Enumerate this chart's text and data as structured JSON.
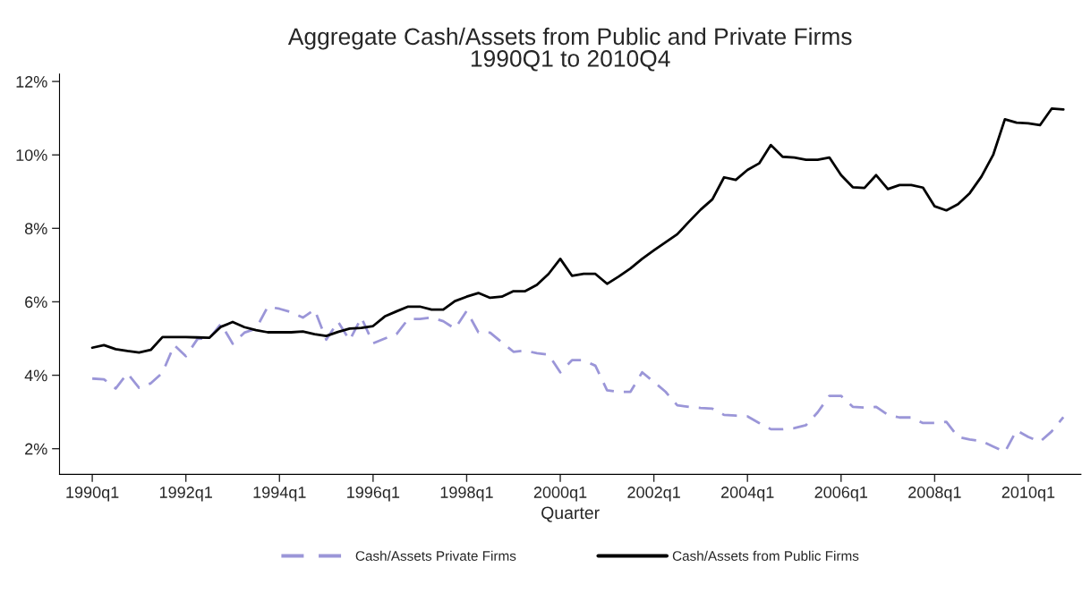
{
  "chart_data": {
    "type": "line",
    "title": "Aggregate Cash/Assets from Public and Private Firms\n1990Q1 to 2010Q4",
    "xlabel": "Quarter",
    "categories": [
      "1990q1",
      null,
      null,
      null,
      null,
      null,
      null,
      null,
      "1992q1",
      null,
      null,
      null,
      null,
      null,
      null,
      null,
      "1994q1",
      null,
      null,
      null,
      null,
      null,
      null,
      null,
      "1996q1",
      null,
      null,
      null,
      null,
      null,
      null,
      null,
      "1998q1",
      null,
      null,
      null,
      null,
      null,
      null,
      null,
      "2000q1",
      null,
      null,
      null,
      null,
      null,
      null,
      null,
      "2002q1",
      null,
      null,
      null,
      null,
      null,
      null,
      null,
      "2004q1",
      null,
      null,
      null,
      null,
      null,
      null,
      null,
      "2006q1",
      null,
      null,
      null,
      null,
      null,
      null,
      null,
      "2008q1",
      null,
      null,
      null,
      null,
      null,
      null,
      null,
      "2010q1",
      null,
      null,
      null
    ],
    "series": [
      {
        "name": "Cash/Assets Private Firms",
        "color": "#9b96d8",
        "line_style": "dashed",
        "values": [
          3.91,
          3.89,
          3.64,
          4.05,
          3.66,
          3.78,
          4.07,
          4.82,
          4.52,
          4.99,
          5.0,
          5.4,
          4.86,
          5.16,
          5.27,
          5.87,
          5.81,
          5.72,
          5.57,
          5.79,
          4.97,
          5.46,
          4.95,
          5.57,
          4.87,
          5.0,
          5.12,
          5.53,
          5.53,
          5.57,
          5.47,
          5.27,
          5.75,
          5.17,
          5.16,
          4.9,
          4.64,
          4.67,
          4.6,
          4.56,
          4.08,
          4.41,
          4.41,
          4.26,
          3.59,
          3.55,
          3.55,
          4.08,
          3.82,
          3.55,
          3.18,
          3.14,
          3.11,
          3.09,
          2.92,
          2.9,
          2.88,
          2.7,
          2.53,
          2.53,
          2.56,
          2.64,
          2.99,
          3.44,
          3.44,
          3.14,
          3.12,
          3.14,
          2.92,
          2.85,
          2.85,
          2.7,
          2.7,
          2.73,
          2.32,
          2.25,
          2.21,
          2.06,
          1.91,
          2.5,
          2.32,
          2.19,
          2.47,
          2.86
        ]
      },
      {
        "name": "Cash/Assets from Public Firms",
        "color": "#000000",
        "line_style": "solid",
        "values": [
          4.75,
          4.82,
          4.71,
          4.66,
          4.62,
          4.69,
          5.04,
          5.04,
          5.04,
          5.03,
          5.02,
          5.32,
          5.45,
          5.31,
          5.23,
          5.17,
          5.17,
          5.17,
          5.19,
          5.12,
          5.07,
          5.18,
          5.27,
          5.29,
          5.34,
          5.6,
          5.74,
          5.87,
          5.87,
          5.79,
          5.79,
          6.02,
          6.14,
          6.24,
          6.11,
          6.14,
          6.29,
          6.29,
          6.46,
          6.76,
          7.17,
          6.71,
          6.76,
          6.76,
          6.49,
          6.69,
          6.91,
          7.17,
          7.4,
          7.62,
          7.84,
          8.18,
          8.51,
          8.79,
          9.39,
          9.32,
          9.59,
          9.77,
          10.27,
          9.95,
          9.93,
          9.87,
          9.87,
          9.93,
          9.45,
          9.12,
          9.1,
          9.45,
          9.07,
          9.18,
          9.18,
          9.11,
          8.6,
          8.49,
          8.66,
          8.96,
          9.41,
          10.0,
          10.97,
          10.88,
          10.86,
          10.81,
          11.26,
          11.24
        ]
      }
    ],
    "ylim": [
      1.3,
      12.2
    ],
    "yticks": [
      {
        "value": 2,
        "label": "2%"
      },
      {
        "value": 4,
        "label": "4%"
      },
      {
        "value": 6,
        "label": "6%"
      },
      {
        "value": 8,
        "label": "8%"
      },
      {
        "value": 10,
        "label": "10%"
      },
      {
        "value": 12,
        "label": "12%"
      }
    ],
    "grid": false,
    "legend": "bottom"
  }
}
